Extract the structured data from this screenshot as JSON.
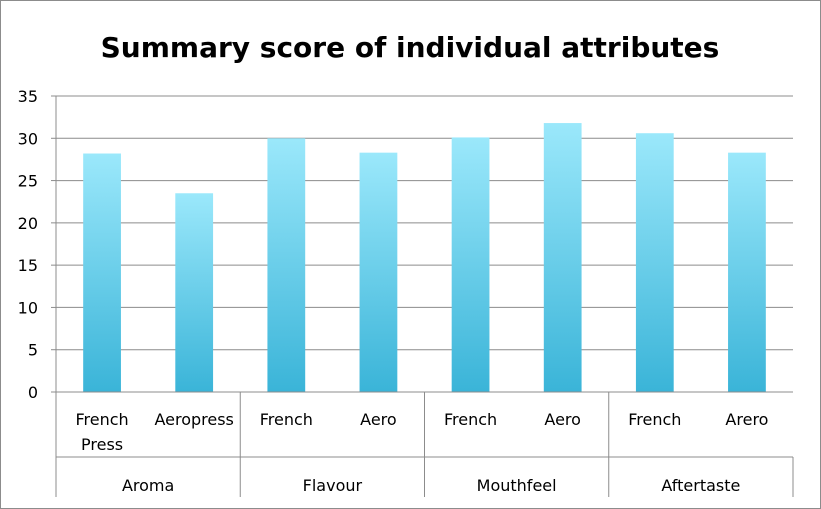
{
  "chart_data": {
    "type": "bar",
    "title": "Summary score of individual attributes",
    "xlabel": "",
    "ylabel": "",
    "ylim": [
      0,
      35
    ],
    "yticks": [
      0,
      5,
      10,
      15,
      20,
      25,
      30,
      35
    ],
    "grid": true,
    "legend": "none",
    "bar_color_top": "#9be8fb",
    "bar_color_bottom": "#3ab4d8",
    "groups": [
      {
        "name": "Aroma",
        "categories": [
          {
            "label": [
              "French",
              "Press"
            ],
            "value": 28.2
          },
          {
            "label": [
              "Aeropress"
            ],
            "value": 23.5
          }
        ]
      },
      {
        "name": "Flavour",
        "categories": [
          {
            "label": [
              "French"
            ],
            "value": 30.0
          },
          {
            "label": [
              "Aero"
            ],
            "value": 28.3
          }
        ]
      },
      {
        "name": "Mouthfeel",
        "categories": [
          {
            "label": [
              "French"
            ],
            "value": 30.1
          },
          {
            "label": [
              "Aero"
            ],
            "value": 31.8
          }
        ]
      },
      {
        "name": "Aftertaste",
        "categories": [
          {
            "label": [
              "French"
            ],
            "value": 30.6
          },
          {
            "label": [
              "Arero"
            ],
            "value": 28.3
          }
        ]
      }
    ]
  }
}
